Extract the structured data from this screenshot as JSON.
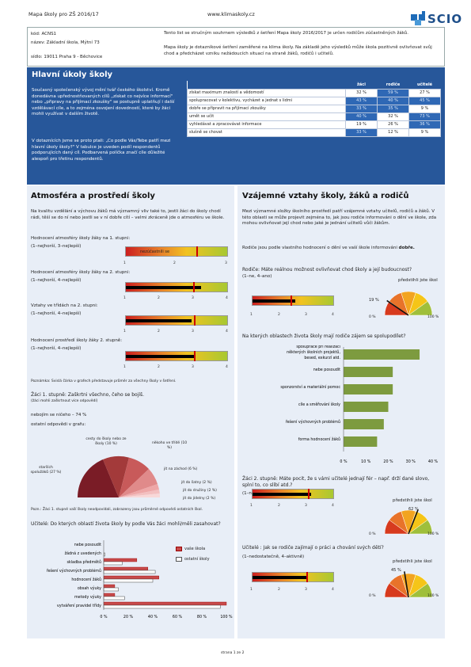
{
  "header": {
    "left": "Mapa školy pro ZŠ 2016/17",
    "center": "www.klimaskoly.cz",
    "logo": "SCIO"
  },
  "info": {
    "kod": "kód: ACNS1",
    "nazev": "název: Základní škola, Mýtní 73",
    "sidlo": "sídlo: 19011  Praha 9 - Běchovice",
    "text1": "Tento list se stručným souhrnem výsledků z šetření Mapa školy 2016/2017 je určen rodičům zúčastněných žáků.",
    "text2": "Mapa školy je dotazníkové šetření zaměřené na klima školy. Na základě jeho výsledků může škola pozitivně ovlivňovat svůj chod a předcházet vzniku nežádoucích situací na straně žáků, rodičů i učitelů."
  },
  "hlavni": {
    "title": "Hlavní úkoly školy",
    "p1": "Současný společenský vývoj mění tvář českého školství. Kromě donedávna upřednostňovaných cílů „získat co nejvíce informací\" nebo „připravy na přijímací zkoušky\" se postupně uplatňují i další vzdělávací cíle, a to zejména osvojení dovedností, které by žáci mohli využívat v dalším životě.",
    "p2": "V dotaznících jsme se proto ptali: „Co podle Vás/Tebe patří mezi hlavní úkoly školy?\" V tabulce je uveden podíl respondentů podporujících daný cíl. Podbarvená políčka značí cíle důležité alespoň pro třetinu respondentů.",
    "cols": [
      "žáci",
      "rodiče",
      "učitelé"
    ],
    "rows": [
      {
        "label": "získat maximum znalostí a vědomostí",
        "v": [
          "32 %",
          "59 %",
          "27 %"
        ],
        "h": [
          false,
          true,
          false
        ]
      },
      {
        "label": "spolupracovat v kolektivu, vycházet a jednat s lidmi",
        "v": [
          "43 %",
          "40 %",
          "45 %"
        ],
        "h": [
          true,
          true,
          true
        ]
      },
      {
        "label": "dobře se připravit na přijímací zkoušky",
        "v": [
          "33 %",
          "35 %",
          "9 %"
        ],
        "h": [
          true,
          true,
          false
        ]
      },
      {
        "label": "umět se učit",
        "v": [
          "40 %",
          "32 %",
          "73 %"
        ],
        "h": [
          true,
          false,
          true
        ]
      },
      {
        "label": "vyhledávat a zpracovávat informace",
        "v": [
          "19 %",
          "26 %",
          "36 %"
        ],
        "h": [
          false,
          false,
          true
        ]
      },
      {
        "label": "slušně se chovat",
        "v": [
          "33 %",
          "12 %",
          "9 %"
        ],
        "h": [
          true,
          false,
          false
        ]
      }
    ]
  },
  "atmo": {
    "title": "Atmosféra a prostředí školy",
    "intro": "Na kvalitu vzdělání a výchovu žáků má významný vliv také to, jestli žáci do školy chodí rádi, těší se do ní nebo jestli se v ní dobře cítí – velmi zkráceně jde o atmosféru ve škole.",
    "q1": "Hodnocení atmosféry školy žáky na 1. stupni:",
    "q1s": "(1–nejhorší, 3–nejlepší)",
    "q1note": "nezúčastnili se",
    "q2": "Hodnocení atmosféry školy žáky na 2. stupni:",
    "q2s": "(1–nejhorší, 4–nejlepší)",
    "q3": "Vztahy ve třídách na 2. stupni:",
    "q3s": "(1–nejhorší, 4–nejlepší)",
    "q4": "Hodnocení prostředí školy žáky 2. stupně:",
    "q4s": "(1–nejhorší, 4–nejlepší)",
    "note": "Poznámka: Svislá čárka v grafech představuje průměr za všechny školy v šetření.",
    "pieq": "Žáci 1. stupně: Zaškrtni všechno, čeho se bojíš.",
    "pieqs": "(žáci mohli zaškrtnout více odpovědí)",
    "nothing": "nebojím se ničeho – 74 %",
    "other": "ostatní odpovědi v grafu:",
    "slices": [
      "cesty do školy nebo ze školy (10 %)",
      "někoho ve třídě (10 %)",
      "jít na záchod (6 %)",
      "jít do šatny (2 %)",
      "jít do družiny (2 %)",
      "jít do jídelny (2 %)",
      "starších spolužáků (27 %)"
    ],
    "pienote": "Pozn.: Žáci 1. stupně vaší školy neodpovídali, zobrazeny jsou průměrné odpovědi ostatních škol.",
    "ucq": "Učitelé: Do kterých oblastí života školy by podle Vás žáci mohli/měli zasahovat?",
    "legend": [
      "vaše škola",
      "ostatní školy"
    ]
  },
  "vztahy": {
    "title": "Vzájemné vztahy školy, žáků a rodičů",
    "intro": "Mezi významné složky školního prostředí patří vzájemné vztahy učitelů, rodičů a žáků. V této oblasti se může projevit zejména to, jak jsou rodiče informováni o dění ve škole, zda mohou ovlivňovat její chod nebo jaké je jednání učitelů vůči žákům.",
    "intro2a": "Rodiče jsou podle vlastního hodnocení o dění ve vaší škole informováni ",
    "intro2b": "dobře.",
    "q1": "Rodiče: Máte reálnou možnost ovlivňovat chod školy a její budoucnost?",
    "q1s": "(1–ne, 4–ano)",
    "g1title": "předstihli jste škol",
    "g1val": "19 %",
    "q2": "Na kterých oblastech života školy mají rodiče zájem se spolupodílet?",
    "q3": "Žáci 2. stupně: Máte pocit, že s vámi učitelé jednají fér – např. drží dané slovo, splní to, co slíbí atd.?",
    "q3s": "(1–ne, 4–ano)",
    "g3title": "předstihli jste škol",
    "g3val": "62 %",
    "q4": "Učitelé : Jak se rodiče zajímají o práci a chování svých dětí?",
    "q4s": "(1–nedostatečně, 4–aktivně)",
    "g4title": "předstihli jste škol",
    "g4val": "45 %",
    "g0": "0 %",
    "g100": "100 %"
  },
  "chart_data": [
    {
      "type": "bar",
      "title": "Učitelé: Do kterých oblastí života školy by podle Vás žáci mohli/měli zasahovat?",
      "categories": [
        "nebe posoudit",
        "žádná z uvedených",
        "skladba předmětů",
        "řešení výchovných problémů",
        "hodnocení žáků",
        "obsah výuky",
        "metody výuky",
        "vytváření pravidel třídy"
      ],
      "series": [
        {
          "name": "vaše škola",
          "values": [
            0,
            0,
            27,
            36,
            45,
            9,
            9,
            100
          ]
        },
        {
          "name": "ostatní školy",
          "values": [
            0,
            1,
            15,
            42,
            40,
            12,
            17,
            95
          ]
        }
      ],
      "xlim": [
        0,
        100
      ],
      "xticks": [
        "0 %",
        "20 %",
        "40 %",
        "60 %",
        "80 %",
        "100 %"
      ]
    },
    {
      "type": "bar",
      "title": "Na kterých oblastech života školy mají rodiče zájem se spolupodílet?",
      "categories": [
        "spolupráce při realizaci některých školních projektů, besed, exkurzí atd.",
        "nebe posoudit",
        "sponzorství a materiální pomoc",
        "cíle a směřování školy",
        "řešení výchovných problémů",
        "forma hodnocení žáků"
      ],
      "values": [
        34,
        22,
        22,
        20,
        18,
        15
      ],
      "xlim": [
        0,
        40
      ],
      "xticks": [
        "0 %",
        "10 %",
        "20 %",
        "30 %",
        "40 %"
      ]
    }
  ],
  "footer": "strana 1 ze 2"
}
